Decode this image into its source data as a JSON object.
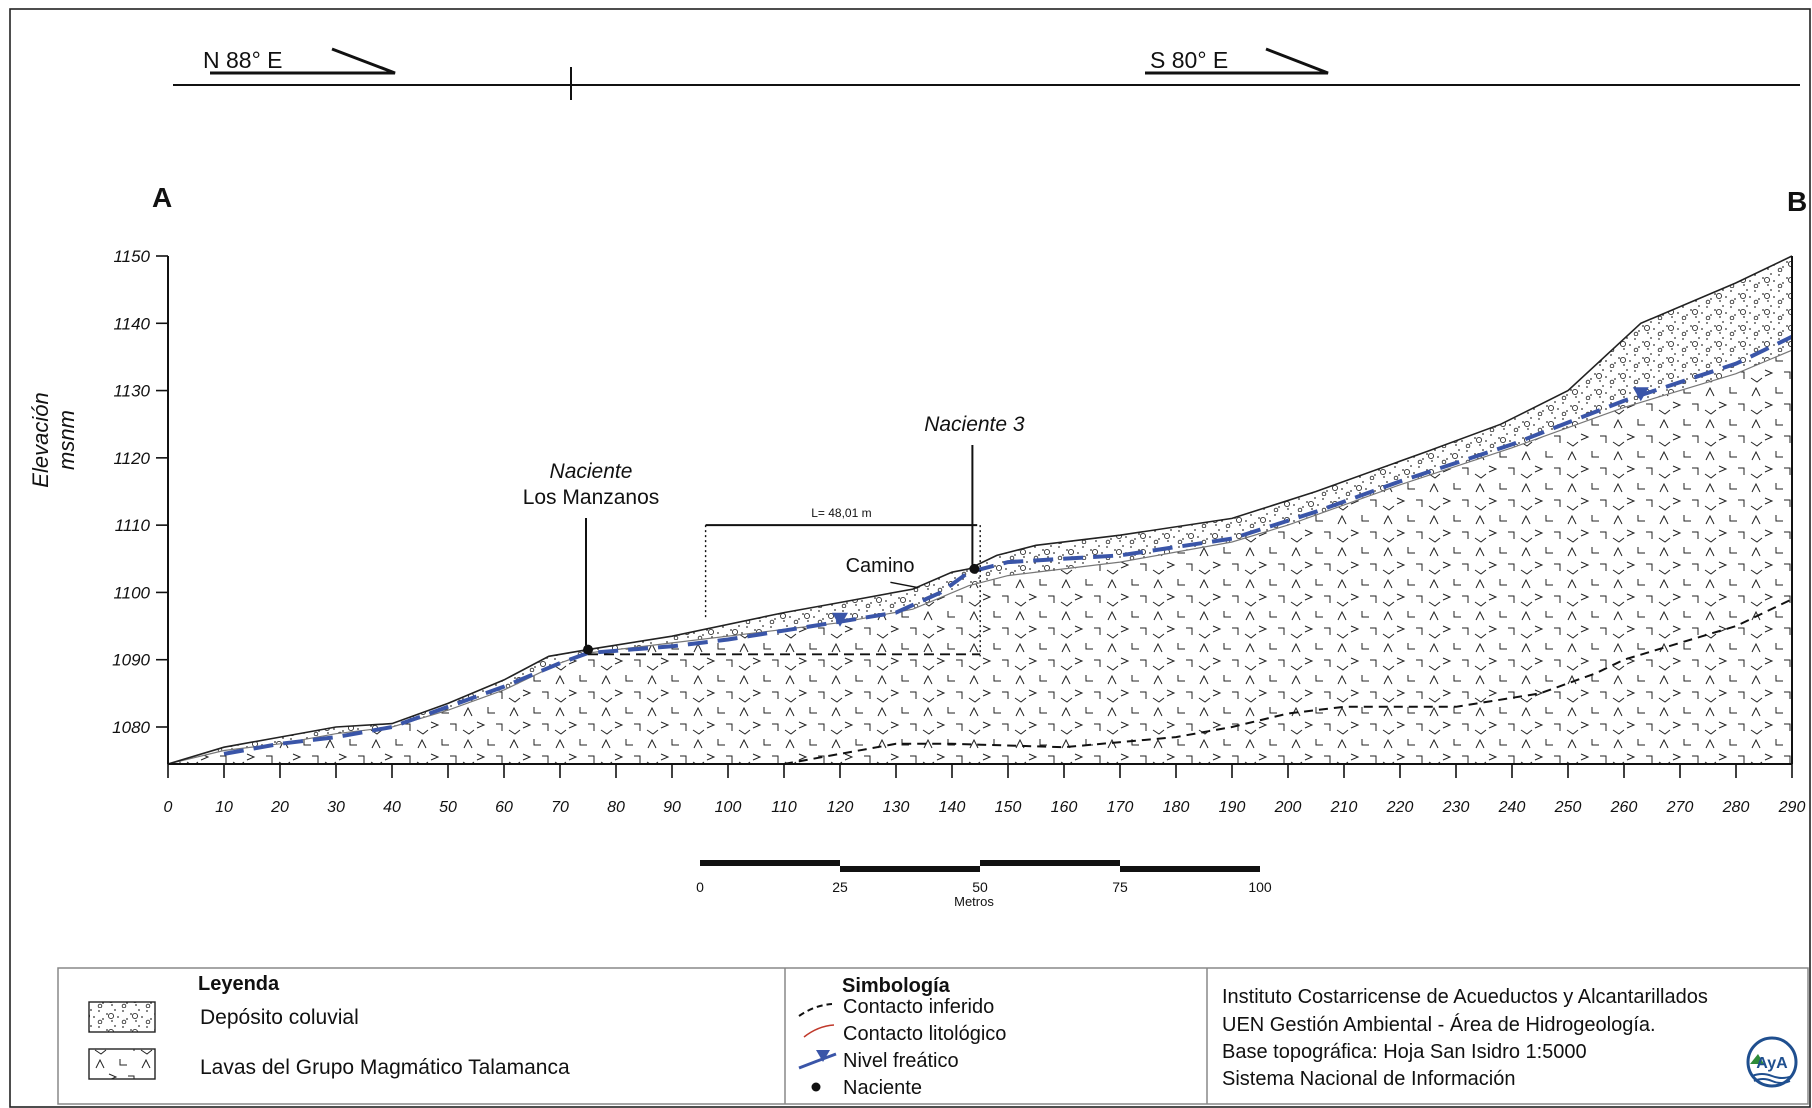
{
  "header": {
    "left_bearing": "N 88° E",
    "right_bearing": "S 80° E"
  },
  "profile": {
    "start_label": "A",
    "end_label": "B",
    "ylabel_line1": "Elevación",
    "ylabel_line2": "msnm",
    "y_ticks": [
      1080,
      1090,
      1100,
      1110,
      1120,
      1130,
      1140,
      1150
    ],
    "x_ticks": [
      0,
      10,
      20,
      30,
      40,
      50,
      60,
      70,
      80,
      90,
      100,
      110,
      120,
      130,
      140,
      150,
      160,
      170,
      180,
      190,
      200,
      210,
      220,
      230,
      240,
      250,
      260,
      270,
      280,
      290
    ],
    "xlim": [
      0,
      290
    ],
    "ylim": [
      1074.5,
      1150
    ],
    "surface": [
      [
        0,
        1074.5
      ],
      [
        10,
        1077
      ],
      [
        20,
        1078.5
      ],
      [
        30,
        1080
      ],
      [
        40,
        1080.5
      ],
      [
        50,
        1083.5
      ],
      [
        60,
        1087
      ],
      [
        68,
        1090.5
      ],
      [
        75,
        1091.5
      ],
      [
        90,
        1093.5
      ],
      [
        110,
        1097
      ],
      [
        120,
        1098.5
      ],
      [
        133,
        1100.5
      ],
      [
        140,
        1103
      ],
      [
        143,
        1103.5
      ],
      [
        148,
        1105.5
      ],
      [
        155,
        1107
      ],
      [
        170,
        1108.5
      ],
      [
        190,
        1111
      ],
      [
        205,
        1115
      ],
      [
        225,
        1121
      ],
      [
        238,
        1125
      ],
      [
        250,
        1130
      ],
      [
        263,
        1140
      ],
      [
        280,
        1146
      ],
      [
        290,
        1150
      ]
    ],
    "lava_top": [
      [
        0,
        1074.5
      ],
      [
        10,
        1076.5
      ],
      [
        20,
        1077.5
      ],
      [
        30,
        1079
      ],
      [
        40,
        1080
      ],
      [
        50,
        1082.5
      ],
      [
        60,
        1085.5
      ],
      [
        70,
        1089.5
      ],
      [
        75,
        1091
      ],
      [
        90,
        1092.5
      ],
      [
        110,
        1094.5
      ],
      [
        120,
        1095.5
      ],
      [
        133,
        1097.5
      ],
      [
        143,
        1101
      ],
      [
        150,
        1102.5
      ],
      [
        170,
        1104.5
      ],
      [
        190,
        1107.5
      ],
      [
        200,
        1110
      ],
      [
        220,
        1116
      ],
      [
        240,
        1121.5
      ],
      [
        260,
        1127.5
      ],
      [
        280,
        1132.5
      ],
      [
        290,
        1136
      ]
    ],
    "water_table": [
      [
        10,
        1076
      ],
      [
        20,
        1077.5
      ],
      [
        30,
        1078.5
      ],
      [
        40,
        1080
      ],
      [
        50,
        1083
      ],
      [
        60,
        1086
      ],
      [
        70,
        1089.5
      ],
      [
        75,
        1091
      ],
      [
        90,
        1092
      ],
      [
        100,
        1093
      ],
      [
        115,
        1095
      ],
      [
        130,
        1097
      ],
      [
        138,
        1100
      ],
      [
        143,
        1103
      ],
      [
        150,
        1104.5
      ],
      [
        170,
        1105.5
      ],
      [
        190,
        1108
      ],
      [
        205,
        1112
      ],
      [
        220,
        1116.5
      ],
      [
        240,
        1122
      ],
      [
        260,
        1128.5
      ],
      [
        280,
        1134
      ],
      [
        290,
        1138
      ]
    ],
    "inferred_contact": [
      [
        110,
        1074.5
      ],
      [
        120,
        1076
      ],
      [
        130,
        1077.5
      ],
      [
        140,
        1077.5
      ],
      [
        160,
        1077
      ],
      [
        180,
        1078.5
      ],
      [
        190,
        1080
      ],
      [
        200,
        1082
      ],
      [
        210,
        1083
      ],
      [
        220,
        1083
      ],
      [
        230,
        1083
      ],
      [
        245,
        1085
      ],
      [
        255,
        1088
      ],
      [
        260,
        1090
      ],
      [
        266,
        1091.5
      ],
      [
        280,
        1095
      ],
      [
        290,
        1099
      ]
    ],
    "springs": [
      {
        "name_line1": "Naciente",
        "name_line2": "Los Manzanos",
        "x": 75,
        "y": 1091.5
      },
      {
        "name_line1": "Naciente 3",
        "name_line2": "",
        "x": 144,
        "y": 1103.5
      }
    ],
    "road_label": "Camino",
    "distance_label": "L= 48,01 m"
  },
  "scale_bar": {
    "labels": [
      "0",
      "25",
      "50",
      "75",
      "100"
    ],
    "unit": "Metros"
  },
  "legend": {
    "title": "Leyenda",
    "items": [
      "Depósito coluvial",
      "Lavas del Grupo Magmático Talamanca"
    ]
  },
  "symbology": {
    "title": "Simbología",
    "items": [
      "Contacto inferido",
      "Contacto litológico",
      "Nivel freático",
      "Naciente"
    ]
  },
  "credits": {
    "lines": [
      "Instituto Costarricense de Acueductos y Alcantarillados",
      "UEN Gestión Ambiental - Área de Hidrogeología.",
      "Base topográfica: Hoja San Isidro 1:5000",
      "Sistema Nacional de Información"
    ],
    "logo_text": "AyA"
  },
  "colors": {
    "water_table": "#3a55a8",
    "lithologic_contact": "#c0392b",
    "frame": "#222222"
  }
}
